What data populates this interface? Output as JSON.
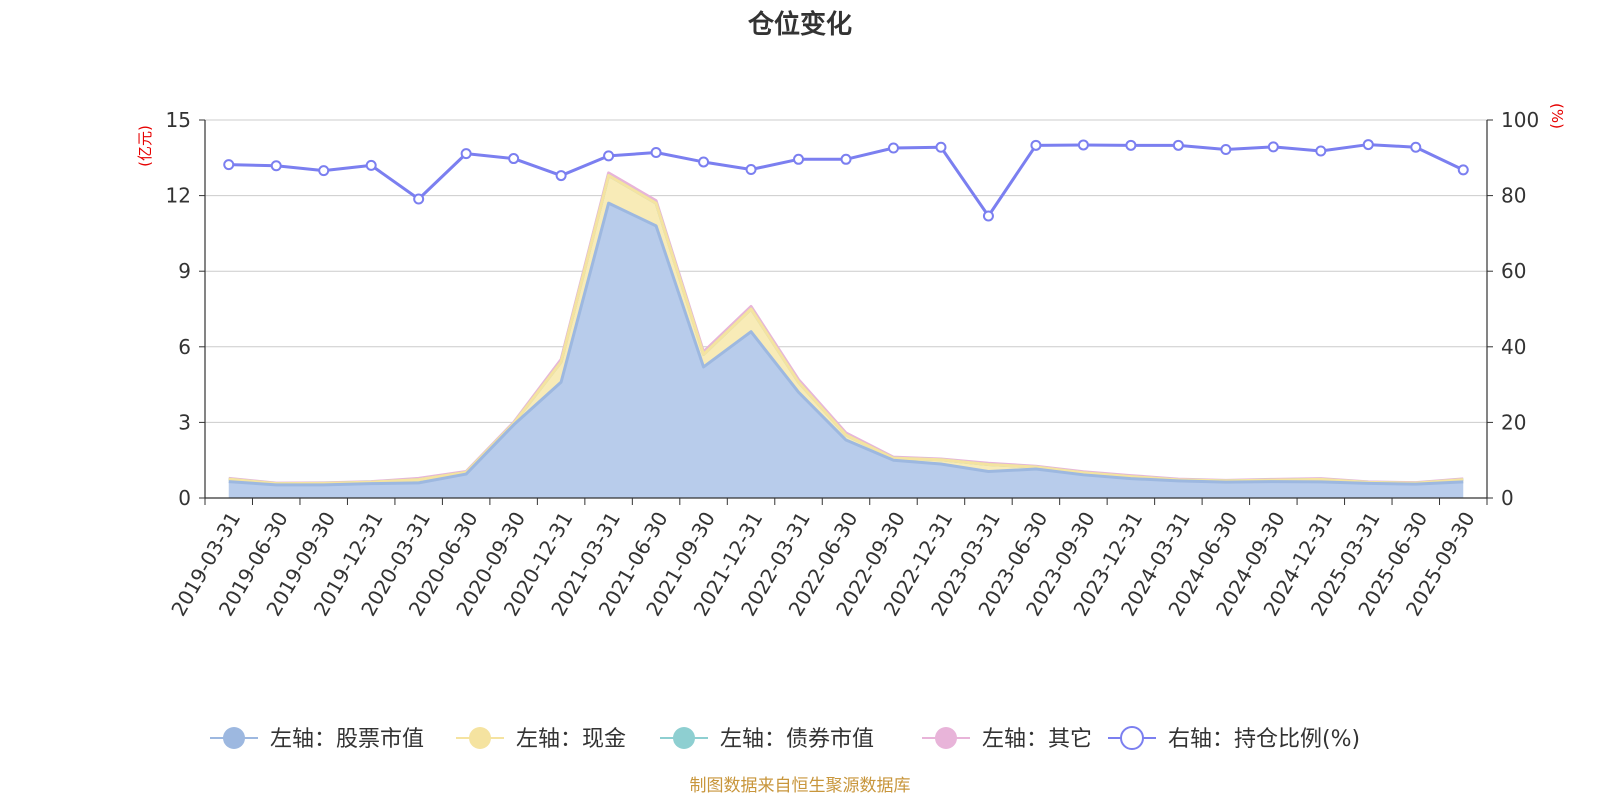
{
  "chart_data": {
    "type": "area",
    "title": "仓位变化",
    "source": "制图数据来自恒生聚源数据库",
    "left_axis": {
      "unit": "(亿元)",
      "min": 0,
      "max": 15,
      "ticks": [
        "0",
        "3",
        "6",
        "9",
        "12",
        "15"
      ]
    },
    "right_axis": {
      "unit": "(%)",
      "min": 0,
      "max": 100,
      "ticks": [
        "0",
        "20",
        "40",
        "60",
        "80",
        "100"
      ]
    },
    "categories": [
      "2019-03-31",
      "2019-06-30",
      "2019-09-30",
      "2019-12-31",
      "2020-03-31",
      "2020-06-30",
      "2020-09-30",
      "2020-12-31",
      "2021-03-31",
      "2021-06-30",
      "2021-09-30",
      "2021-12-31",
      "2022-03-31",
      "2022-06-30",
      "2022-09-30",
      "2022-12-31",
      "2023-03-31",
      "2023-06-30",
      "2023-09-30",
      "2023-12-31",
      "2024-03-31",
      "2024-06-30",
      "2024-09-30",
      "2024-12-31",
      "2025-03-31",
      "2025-06-30",
      "2025-09-30"
    ],
    "series": [
      {
        "name": "左轴：股票市值",
        "axis": "left",
        "stack": true,
        "color": "#9db8e0",
        "fill": "#b8cceb",
        "values": [
          0.65,
          0.52,
          0.52,
          0.57,
          0.6,
          0.95,
          2.9,
          4.6,
          11.7,
          10.8,
          5.2,
          6.6,
          4.2,
          2.3,
          1.5,
          1.35,
          1.05,
          1.15,
          0.92,
          0.77,
          0.68,
          0.63,
          0.65,
          0.64,
          0.58,
          0.55,
          0.64
        ]
      },
      {
        "name": "左轴：现金",
        "axis": "left",
        "stack": true,
        "color": "#f5e3a0",
        "fill": "#f8ebb7",
        "values": [
          0.1,
          0.05,
          0.06,
          0.06,
          0.13,
          0.07,
          0.06,
          0.8,
          1.1,
          0.9,
          0.5,
          0.9,
          0.4,
          0.2,
          0.08,
          0.17,
          0.28,
          0.08,
          0.08,
          0.08,
          0.04,
          0.05,
          0.06,
          0.1,
          0.04,
          0.04,
          0.09
        ]
      },
      {
        "name": "左轴：债券市值",
        "axis": "left",
        "stack": true,
        "color": "#8ecfd1",
        "fill": "#a9dcde",
        "values": [
          0,
          0,
          0,
          0,
          0,
          0,
          0,
          0,
          0,
          0,
          0,
          0,
          0,
          0,
          0,
          0,
          0,
          0,
          0,
          0,
          0,
          0,
          0,
          0,
          0,
          0,
          0
        ]
      },
      {
        "name": "左轴：其它",
        "axis": "left",
        "stack": true,
        "color": "#e8b4d9",
        "fill": "#eec6e3",
        "values": [
          0.03,
          0.02,
          0.02,
          0.02,
          0.05,
          0.03,
          0.04,
          0.1,
          0.1,
          0.1,
          0.1,
          0.1,
          0.1,
          0.08,
          0.04,
          0.03,
          0.05,
          0.03,
          0.04,
          0.04,
          0.03,
          0.02,
          0.03,
          0.03,
          0.02,
          0.02,
          0.03
        ]
      },
      {
        "name": "右轴：持仓比例(%)",
        "axis": "right",
        "stack": false,
        "color": "#7b7ff0",
        "fill": "none",
        "values": [
          88.2,
          87.9,
          86.6,
          88.0,
          79.1,
          91.1,
          89.8,
          85.3,
          90.5,
          91.4,
          88.9,
          86.9,
          89.6,
          89.6,
          92.6,
          92.8,
          74.6,
          93.3,
          93.4,
          93.3,
          93.3,
          92.2,
          92.9,
          91.8,
          93.5,
          92.8,
          86.8
        ]
      }
    ],
    "grid": true,
    "legend_position": "bottom-center"
  }
}
